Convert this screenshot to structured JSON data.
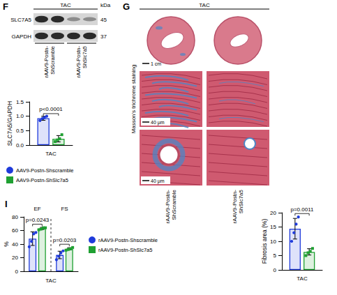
{
  "blot": {
    "panel": "F",
    "title": "TAC",
    "unit": "kDa",
    "rows": [
      {
        "label": "SLC7A5",
        "kda": 45
      },
      {
        "label": "GAPDH",
        "kda": 37
      }
    ],
    "lanes": [
      "rAAV9-Postn-ShScramble",
      "rAAV9-Postn-ShSlc7a5"
    ]
  },
  "histology": {
    "panel": "G",
    "title": "TAC",
    "stain": "Masson's trichrome staining",
    "scale_bars": [
      "1 cm",
      "40 μm",
      "40 μm"
    ],
    "columns": [
      "rAAV9-Postn-ShScramble",
      "rAAV9-Postn-ShSlc7a5"
    ]
  },
  "chart_data": [
    {
      "type": "bar",
      "ylabel": "SLC7A5/GAPDH",
      "categories": [
        "TAC"
      ],
      "series": [
        {
          "name": "AAV9-Postn-Shscramble",
          "color": "#1f3bdb",
          "marker": "circle",
          "values": [
            0.93
          ],
          "errors": [
            0.07
          ],
          "points": [
            [
              0.85,
              0.92,
              0.96,
              1.0
            ]
          ]
        },
        {
          "name": "AAV9-Postn-ShSlc7a5",
          "color": "#1fa032",
          "marker": "square",
          "values": [
            0.22
          ],
          "errors": [
            0.11
          ],
          "points": [
            [
              0.12,
              0.18,
              0.22,
              0.36
            ]
          ]
        }
      ],
      "ylim": [
        0,
        1.5
      ],
      "yticks": [
        {
          "value": 0,
          "label": "0.0"
        },
        0.5,
        {
          "value": 1,
          "label": "1.0"
        },
        1.5
      ],
      "annotations": [
        {
          "text": "p<0.0001",
          "category": "TAC"
        }
      ],
      "grid": false,
      "legend": "bottom"
    },
    {
      "type": "bar",
      "panel": "I",
      "ylabel": "%",
      "xlabel": "TAC",
      "categories": [
        "EF",
        "FS"
      ],
      "series": [
        {
          "name": "rAAV9-Postn-Shscramble",
          "color": "#1f3bdb",
          "marker": "circle",
          "values": [
            48,
            24
          ],
          "errors": [
            10,
            5.5
          ],
          "points": [
            [
              36,
              44,
              55,
              57
            ],
            [
              17,
              22,
              27,
              30
            ]
          ]
        },
        {
          "name": "rAAV9-Postn-ShSlc7a5",
          "color": "#1fa032",
          "marker": "square",
          "values": [
            63,
            33
          ],
          "errors": [
            1.5,
            1.7
          ],
          "points": [
            [
              61,
              62,
              64,
              64
            ],
            [
              31,
              32,
              33,
              35
            ]
          ]
        }
      ],
      "ylim": [
        0,
        80
      ],
      "yticks": [
        0,
        20,
        40,
        60,
        80
      ],
      "annotations": [
        {
          "text": "p=0.0243",
          "category": "EF"
        },
        {
          "text": "p=0.0203",
          "category": "FS"
        }
      ],
      "grid": false,
      "legend": "right"
    },
    {
      "type": "bar",
      "ylabel": "Fibrosis area (%)",
      "categories": [
        "TAC"
      ],
      "series": [
        {
          "name": "rAAV9-Postn-Shscramble",
          "color": "#1f3bdb",
          "marker": "circle",
          "values": [
            14.4
          ],
          "errors": [
            3.6
          ],
          "points": [
            [
              10,
              13,
              16,
              18.5
            ]
          ]
        },
        {
          "name": "rAAV9-Postn-ShSlc7a5",
          "color": "#1fa032",
          "marker": "square",
          "values": [
            6.3
          ],
          "errors": [
            1.1
          ],
          "points": [
            [
              5,
              6,
              6.5,
              7.5
            ]
          ]
        }
      ],
      "ylim": [
        0,
        20
      ],
      "yticks": [
        0,
        5,
        10,
        15,
        20
      ],
      "annotations": [
        {
          "text": "p=0.0011",
          "category": "TAC"
        }
      ],
      "grid": false
    }
  ]
}
